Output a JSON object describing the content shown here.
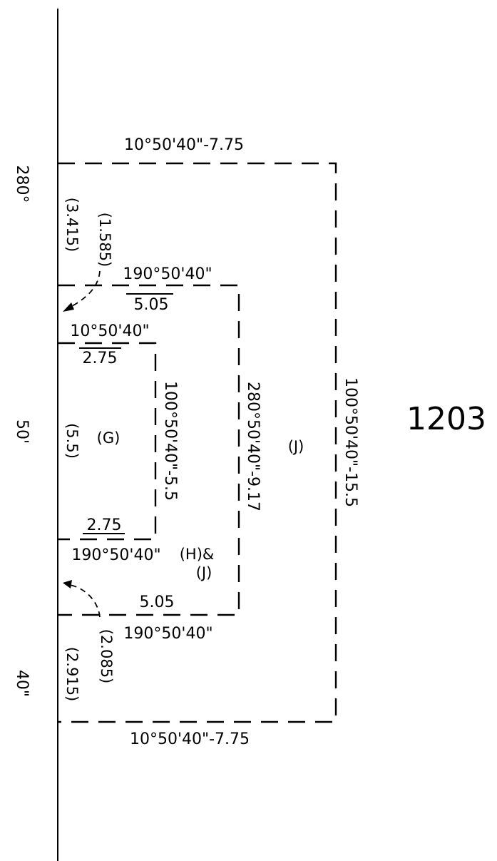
{
  "diagram": {
    "lot_number": "1203",
    "baseline_labels": {
      "upper": "280°",
      "middle": "50'",
      "lower": "40\""
    },
    "outer_box": {
      "top": "10°50'40\"-7.75",
      "right": "100°50'40\"-15.5",
      "bottom": "10°50'40\"-7.75",
      "zone": "(J)",
      "left_upper_offset": "(3.415)",
      "left_lower_offset": "(2.915)"
    },
    "middle_box": {
      "top_bearing": "190°50'40\"",
      "top_distance": "5.05",
      "right": "280°50'40\"-9.17",
      "bottom_distance": "5.05",
      "bottom_bearing": "190°50'40\"",
      "zone_line1": "(H)&",
      "zone_line2": "(J)",
      "upper_leader": "(1.585)",
      "lower_leader": "(2.085)"
    },
    "inner_box": {
      "top_bearing": "10°50'40\"",
      "top_distance": "2.75",
      "right": "100°50'40\"-5.5",
      "bottom_distance": "2.75",
      "bottom_bearing": "190°50'40\"",
      "zone": "(G)",
      "left_offset": "(5.5)"
    }
  }
}
